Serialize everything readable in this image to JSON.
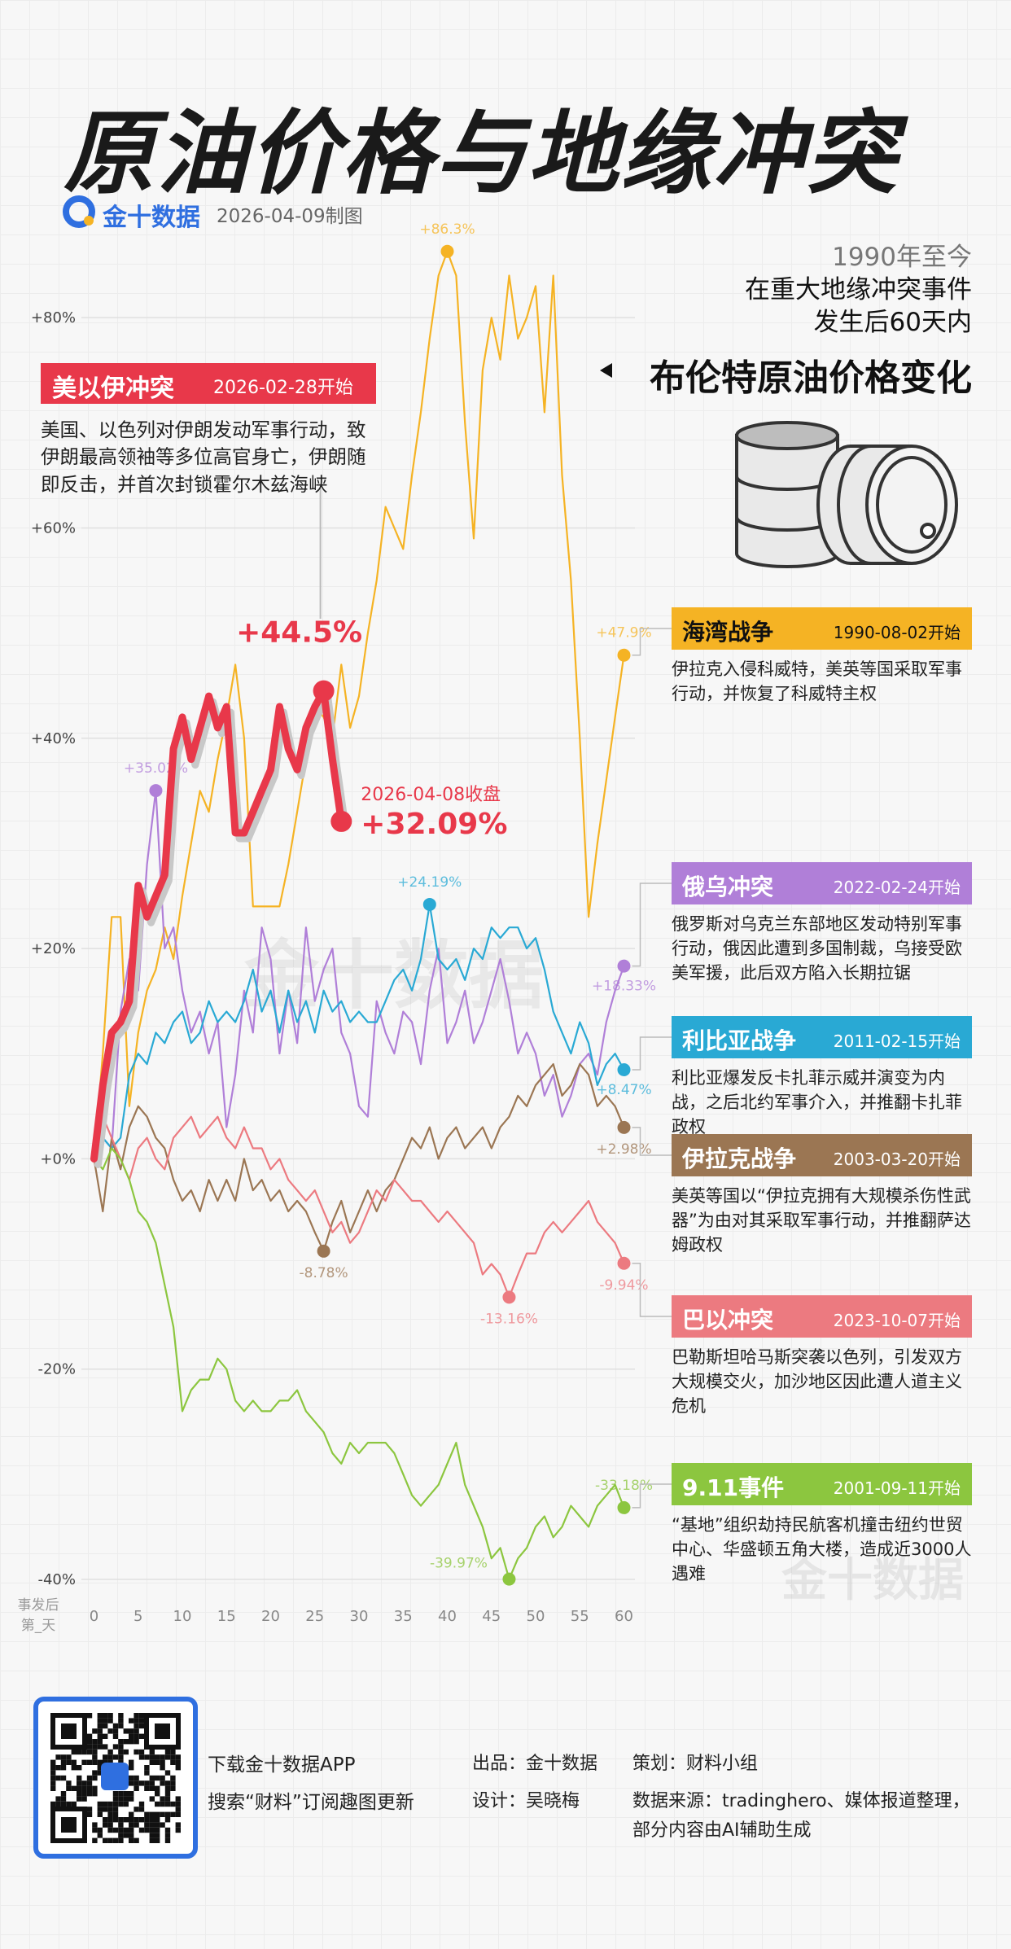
{
  "header": {
    "title": "原油价格与地缘冲突",
    "brand": "金十数据",
    "date": "2026-04-09制图",
    "intro": [
      "1990年至今",
      "在重大地缘冲突事件",
      "发生后60天内"
    ],
    "subject": "布伦特原油价格变化"
  },
  "chart_data": {
    "type": "line",
    "x_label": [
      "事发后",
      "第_天"
    ],
    "x": [
      0,
      1,
      2,
      3,
      4,
      5,
      6,
      7,
      8,
      9,
      10,
      11,
      12,
      13,
      14,
      15,
      16,
      17,
      18,
      19,
      20,
      21,
      22,
      23,
      24,
      25,
      26,
      27,
      28,
      29,
      30,
      31,
      32,
      33,
      34,
      35,
      36,
      37,
      38,
      39,
      40,
      41,
      42,
      43,
      44,
      45,
      46,
      47,
      48,
      49,
      50,
      51,
      52,
      53,
      54,
      55,
      56,
      57,
      58,
      59,
      60
    ],
    "xlim": [
      0,
      60
    ],
    "xticks": [
      0,
      5,
      10,
      15,
      20,
      25,
      30,
      35,
      40,
      45,
      50,
      55,
      60
    ],
    "ylim": [
      -40,
      90
    ],
    "yticks": [
      {
        "value": -40,
        "label": "-40%"
      },
      {
        "value": -20,
        "label": "-20%"
      },
      {
        "value": 0,
        "label": "+0%"
      },
      {
        "value": 20,
        "label": "+20%"
      },
      {
        "value": 40,
        "label": "+40%"
      },
      {
        "value": 60,
        "label": "+60%"
      },
      {
        "value": 80,
        "label": "+80%"
      }
    ],
    "grid": true,
    "series": [
      {
        "name": "海湾战争",
        "date": "1990-08-02开始",
        "description": "伊拉克入侵科威特，美英等国采取军事行动，并恢复了科威特主权",
        "color": "#f5b324",
        "values": [
          0,
          10,
          23,
          23,
          5,
          12,
          16,
          18,
          22,
          19,
          25,
          30,
          35,
          33,
          38,
          42,
          47,
          40,
          24,
          24,
          24,
          24,
          28,
          33,
          38,
          43,
          42,
          40,
          47,
          41,
          44,
          50,
          55,
          62,
          60,
          58,
          65,
          71,
          78,
          84,
          86.3,
          84,
          70,
          59,
          75,
          80,
          76,
          84,
          78,
          80,
          83,
          71,
          84,
          65,
          55,
          40,
          23,
          30,
          36,
          42,
          47.9
        ],
        "value_labels": [
          null,
          null,
          null,
          null,
          null,
          null,
          null,
          null,
          null,
          null,
          null,
          null,
          null,
          null,
          null,
          null,
          null,
          null,
          null,
          null,
          null,
          null,
          null,
          null,
          null,
          null,
          null,
          null,
          null,
          null,
          null,
          null,
          null,
          null,
          null,
          null,
          null,
          null,
          null,
          null,
          "+86.3%",
          null,
          null,
          null,
          null,
          null,
          null,
          null,
          null,
          null,
          null,
          null,
          null,
          null,
          null,
          null,
          null,
          null,
          null,
          null,
          "+47.9%"
        ]
      },
      {
        "name": "俄乌冲突",
        "date": "2022-02-24开始",
        "description": "俄罗斯对乌克兰东部地区发动特别军事行动，俄因此遭到多国制裁，乌接受欧美军援，此后双方陷入长期拉锯",
        "color": "#b07fd8",
        "values": [
          0,
          2,
          1,
          14,
          19,
          16,
          28,
          35.02,
          20,
          22,
          16,
          12,
          14,
          10,
          13,
          3,
          8,
          16,
          12,
          22,
          19,
          10,
          16,
          11,
          22,
          15,
          18,
          20,
          12,
          10,
          5,
          4,
          15,
          12,
          10,
          14,
          13,
          9,
          16,
          20,
          11,
          13,
          16,
          11,
          13,
          16,
          19,
          15,
          10,
          12,
          10,
          6,
          8,
          4,
          6,
          9,
          10,
          8,
          13,
          16,
          18.33
        ],
        "value_labels": [
          null,
          null,
          null,
          null,
          null,
          null,
          null,
          "+35.02%",
          null,
          null,
          null,
          null,
          null,
          null,
          null,
          null,
          null,
          null,
          null,
          null,
          null,
          null,
          null,
          null,
          null,
          null,
          null,
          null,
          null,
          null,
          null,
          null,
          null,
          null,
          null,
          null,
          null,
          null,
          null,
          null,
          null,
          null,
          null,
          null,
          null,
          null,
          null,
          null,
          null,
          null,
          null,
          null,
          null,
          null,
          null,
          null,
          null,
          null,
          null,
          null,
          "+18.33%"
        ]
      },
      {
        "name": "利比亚战争",
        "date": "2011-02-15开始",
        "description": "利比亚爆发反卡扎菲示威并演变为内战，之后北约军事介入，并推翻卡扎菲政权",
        "color": "#29a9d4",
        "values": [
          0,
          2,
          1,
          2,
          8,
          10,
          9,
          12,
          11,
          13,
          14,
          11,
          12,
          15,
          13,
          14,
          13,
          15,
          18,
          14,
          16,
          12,
          16,
          13,
          15,
          12,
          16,
          14,
          15,
          13,
          14,
          13,
          13,
          15,
          17,
          18,
          16,
          19,
          24.19,
          19,
          18,
          19,
          17,
          20,
          19,
          22,
          21,
          22,
          22,
          20,
          21,
          18,
          14,
          12,
          10,
          13,
          11,
          7,
          9,
          10,
          8.47
        ],
        "value_labels": [
          null,
          null,
          null,
          null,
          null,
          null,
          null,
          null,
          null,
          null,
          null,
          null,
          null,
          null,
          null,
          null,
          null,
          null,
          null,
          null,
          null,
          null,
          null,
          null,
          null,
          null,
          null,
          null,
          null,
          null,
          null,
          null,
          null,
          null,
          null,
          null,
          null,
          null,
          "+24.19%",
          null,
          null,
          null,
          null,
          null,
          null,
          null,
          null,
          null,
          null,
          null,
          null,
          null,
          null,
          null,
          null,
          null,
          null,
          null,
          null,
          null,
          "+8.47%"
        ]
      },
      {
        "name": "伊拉克战争",
        "date": "2003-03-20开始",
        "description": "美英等国以“伊拉克拥有大规模杀伤性武器”为由对其采取军事行动，并推翻萨达姆政权",
        "color": "#9b7653",
        "values": [
          0,
          -5,
          2,
          -1,
          3,
          5,
          4,
          2,
          1,
          -2,
          -4,
          -3,
          -5,
          -2,
          -4,
          -2,
          -4,
          0,
          -3,
          -2,
          -4,
          -3,
          -5,
          -4,
          -5,
          -7,
          -8.78,
          -6,
          -4,
          -7,
          -5,
          -3,
          -5,
          -3,
          -2,
          0,
          2,
          1,
          3,
          0,
          2,
          3,
          1,
          2,
          3,
          1,
          3,
          4,
          6,
          5,
          7,
          8,
          9,
          6,
          7,
          9,
          8,
          5,
          6,
          5,
          2.98
        ],
        "value_labels": [
          null,
          null,
          null,
          null,
          null,
          null,
          null,
          null,
          null,
          null,
          null,
          null,
          null,
          null,
          null,
          null,
          null,
          null,
          null,
          null,
          null,
          null,
          null,
          null,
          null,
          null,
          "-8.78%",
          null,
          null,
          null,
          null,
          null,
          null,
          null,
          null,
          null,
          null,
          null,
          null,
          null,
          null,
          null,
          null,
          null,
          null,
          null,
          null,
          null,
          null,
          null,
          null,
          null,
          null,
          null,
          null,
          null,
          null,
          null,
          null,
          null,
          "+2.98%"
        ]
      },
      {
        "name": "巴以冲突",
        "date": "2023-10-07开始",
        "description": "巴勒斯坦哈马斯突袭以色列，引发双方大规模交火，加沙地区因此遭人道主义危机",
        "color": "#ec7a80",
        "values": [
          0,
          4,
          2,
          0,
          -2,
          1,
          2,
          0,
          -1,
          2,
          3,
          4,
          2,
          3,
          4,
          2,
          1,
          3,
          1,
          1,
          -1,
          0,
          -2,
          -3,
          -4,
          -3,
          -5,
          -7,
          -6,
          -8,
          -7,
          -5,
          -3,
          -4,
          -2,
          -3,
          -4,
          -4,
          -5,
          -6,
          -5,
          -6,
          -7,
          -8,
          -11,
          -10,
          -11,
          -13.16,
          -11,
          -9,
          -9,
          -7,
          -6,
          -7,
          -6,
          -5,
          -4,
          -6,
          -7,
          -8,
          -9.94
        ],
        "value_labels": [
          null,
          null,
          null,
          null,
          null,
          null,
          null,
          null,
          null,
          null,
          null,
          null,
          null,
          null,
          null,
          null,
          null,
          null,
          null,
          null,
          null,
          null,
          null,
          null,
          null,
          null,
          null,
          null,
          null,
          null,
          null,
          null,
          null,
          null,
          null,
          null,
          null,
          null,
          null,
          null,
          null,
          null,
          null,
          null,
          null,
          null,
          null,
          "-13.16%",
          null,
          null,
          null,
          null,
          null,
          null,
          null,
          null,
          null,
          null,
          null,
          null,
          "-9.94%"
        ]
      },
      {
        "name": "9.11事件",
        "date": "2001-09-11开始",
        "description": "“基地”组织劫持民航客机撞击纽约世贸中心、华盛顿五角大楼，造成近3000人遇难",
        "color": "#8cc63f",
        "values": [
          0,
          -1,
          1,
          0,
          -2,
          -5,
          -6,
          -8,
          -12,
          -16,
          -24,
          -22,
          -21,
          -21,
          -19,
          -20,
          -23,
          -24,
          -23,
          -24,
          -24,
          -23,
          -23,
          -22,
          -24,
          -25,
          -26,
          -28,
          -29,
          -27,
          -28,
          -27,
          -27,
          -27,
          -28,
          -30,
          -32,
          -33,
          -32,
          -31,
          -29,
          -27,
          -31,
          -33,
          -35,
          -38,
          -37,
          -39.97,
          -38,
          -37,
          -35,
          -34,
          -36,
          -35,
          -33,
          -34,
          -35,
          -33,
          -32,
          -31,
          -33.18
        ],
        "value_labels": [
          null,
          null,
          null,
          null,
          null,
          null,
          null,
          null,
          null,
          null,
          null,
          null,
          null,
          null,
          null,
          null,
          null,
          null,
          null,
          null,
          null,
          null,
          null,
          null,
          null,
          null,
          null,
          null,
          null,
          null,
          null,
          null,
          null,
          null,
          null,
          null,
          null,
          null,
          null,
          null,
          null,
          null,
          null,
          null,
          null,
          null,
          null,
          "-39.97%",
          null,
          null,
          null,
          null,
          null,
          null,
          null,
          null,
          null,
          null,
          null,
          null,
          "-33.18%"
        ]
      },
      {
        "name": "美以伊冲突",
        "date": "2026-02-28开始",
        "description": "美国、以色列对伊朗发动军事行动，致伊朗最高领袖等多位高官身亡，伊朗随即反击，并首次封锁霍尔木兹海峡",
        "color": "#e8384a",
        "end_note": "2026-04-08收盘",
        "values": [
          0,
          7,
          12,
          13,
          15,
          26,
          23,
          25,
          27,
          39,
          42,
          38,
          41,
          44,
          41,
          43,
          31,
          31,
          33,
          35,
          37,
          43,
          39,
          37,
          41,
          43,
          44.5,
          38,
          32.09,
          null,
          null,
          null,
          null,
          null,
          null,
          null,
          null,
          null,
          null,
          null,
          null,
          null,
          null,
          null,
          null,
          null,
          null,
          null,
          null,
          null,
          null,
          null,
          null,
          null,
          null,
          null,
          null,
          null,
          null,
          null,
          null
        ],
        "value_labels": [
          null,
          null,
          null,
          null,
          null,
          null,
          null,
          null,
          null,
          null,
          null,
          null,
          null,
          null,
          null,
          null,
          null,
          null,
          null,
          null,
          null,
          null,
          null,
          null,
          null,
          null,
          "+44.5%",
          null,
          "+32.09%",
          null,
          null,
          null,
          null,
          null,
          null,
          null,
          null,
          null,
          null,
          null,
          null,
          null,
          null,
          null,
          null,
          null,
          null,
          null,
          null,
          null,
          null,
          null,
          null,
          null,
          null,
          null,
          null,
          null,
          null,
          null,
          null
        ]
      }
    ]
  },
  "watermark": "金十数据",
  "footer": {
    "download": "下载金十数据APP",
    "search": "搜索“财料”订阅趣图更新",
    "producer": "出品：金十数据",
    "designer": "设计：吴晓梅",
    "planner": "策划：财料小组",
    "source": [
      "数据来源：tradinghero、媒体报道整理，",
      "部分内容由AI辅助生成"
    ]
  }
}
